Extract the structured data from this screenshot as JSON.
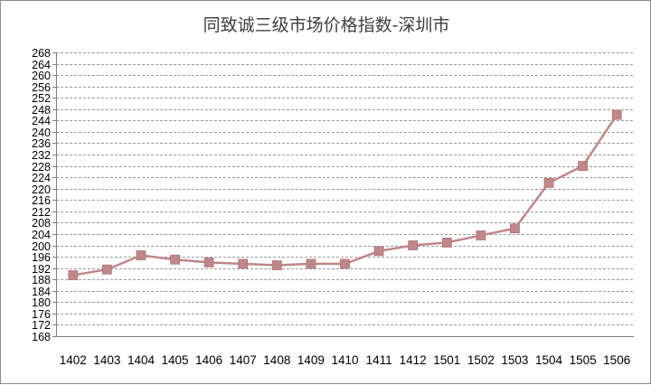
{
  "chart_data": {
    "type": "line",
    "title": "同致诚三级市场价格指数-深圳市",
    "xlabel": "",
    "ylabel": "",
    "categories": [
      "1402",
      "1403",
      "1404",
      "1405",
      "1406",
      "1407",
      "1408",
      "1409",
      "1410",
      "1411",
      "1412",
      "1501",
      "1502",
      "1503",
      "1504",
      "1505",
      "1506"
    ],
    "series": [
      {
        "values": [
          189.5,
          191.5,
          196.5,
          195,
          194,
          193.5,
          193,
          193.5,
          193.5,
          198,
          200,
          201,
          203.5,
          206,
          222,
          228,
          246
        ],
        "color": "#c0878a",
        "marker": "square"
      }
    ],
    "ylim": [
      168,
      268
    ],
    "ytick_step": 4,
    "yticks": [
      "168",
      "172",
      "176",
      "180",
      "184",
      "188",
      "192",
      "196",
      "200",
      "204",
      "208",
      "212",
      "216",
      "220",
      "224",
      "228",
      "232",
      "236",
      "240",
      "244",
      "248",
      "252",
      "256",
      "260",
      "264",
      "268"
    ],
    "grid": "horizontal-dashed",
    "legend": "none"
  }
}
